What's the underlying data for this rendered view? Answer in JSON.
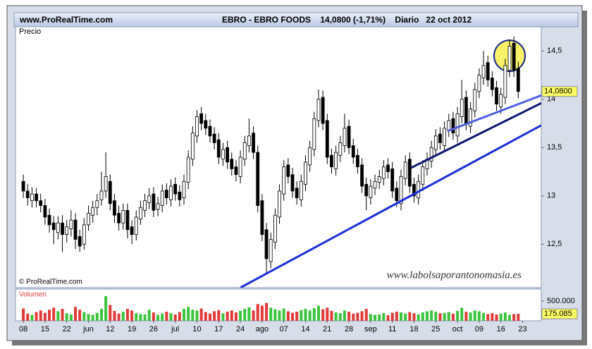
{
  "header": {
    "site": "www.ProRealTime.com",
    "title": "EBRO - EBRO FOODS    14,0800 (-1,71%)    Diario   22 oct 2012"
  },
  "chart_data": [
    {
      "type": "candlestick",
      "label": "Precio",
      "copyright": "© ProRealTime.com",
      "watermark": "www.labolsaporantonomasia.es",
      "up_color": "#ffffff",
      "down_color": "#000000",
      "xlim": [
        -1.8,
        119.3
      ],
      "ylim": [
        12.05,
        14.75
      ],
      "xticks": [
        {
          "value": 0,
          "label": "08"
        },
        {
          "value": 5,
          "label": "15"
        },
        {
          "value": 10,
          "label": "22"
        },
        {
          "value": 15,
          "label": "jun"
        },
        {
          "value": 20,
          "label": "12"
        },
        {
          "value": 25,
          "label": "19"
        },
        {
          "value": 30,
          "label": "26"
        },
        {
          "value": 35,
          "label": "jul"
        },
        {
          "value": 40,
          "label": "10"
        },
        {
          "value": 45,
          "label": "17"
        },
        {
          "value": 50,
          "label": "24"
        },
        {
          "value": 55,
          "label": "ago"
        },
        {
          "value": 60,
          "label": "07"
        },
        {
          "value": 65,
          "label": "14"
        },
        {
          "value": 70,
          "label": "21"
        },
        {
          "value": 75,
          "label": "28"
        },
        {
          "value": 80,
          "label": "sep"
        },
        {
          "value": 85,
          "label": "11"
        },
        {
          "value": 90,
          "label": "18"
        },
        {
          "value": 95,
          "label": "25"
        },
        {
          "value": 100,
          "label": "oct"
        },
        {
          "value": 105,
          "label": "09"
        },
        {
          "value": 110,
          "label": "16"
        },
        {
          "value": 115,
          "label": "23"
        }
      ],
      "yticks": [
        {
          "value": 14.5,
          "label": "14,5"
        },
        {
          "value": 14,
          "label": "14"
        },
        {
          "value": 13.5,
          "label": "13,5"
        },
        {
          "value": 13,
          "label": "13"
        },
        {
          "value": 12.5,
          "label": "12,5"
        }
      ],
      "last": {
        "value": 14.08,
        "label": "14,0800"
      },
      "open": [
        13.15,
        13.05,
        12.95,
        13.02,
        12.95,
        12.9,
        12.8,
        12.72,
        12.62,
        12.72,
        12.6,
        12.66,
        12.75,
        12.58,
        12.5,
        12.7,
        12.8,
        12.88,
        12.96,
        13.05,
        13.15,
        12.95,
        12.82,
        12.72,
        12.85,
        12.68,
        12.6,
        12.76,
        12.85,
        12.93,
        13.02,
        12.86,
        12.9,
        13.06,
        12.96,
        13.12,
        13.04,
        12.98,
        13.14,
        13.38,
        13.62,
        13.85,
        13.78,
        13.72,
        13.64,
        13.58,
        13.38,
        13.5,
        13.38,
        13.3,
        13.2,
        13.38,
        13.52,
        13.65,
        13.45,
        12.95,
        12.65,
        12.32,
        12.52,
        12.78,
        13.02,
        13.32,
        13.22,
        13.08,
        12.96,
        13.12,
        13.32,
        13.48,
        13.78,
        14.02,
        13.78,
        13.42,
        13.28,
        13.42,
        13.52,
        13.72,
        13.52,
        13.42,
        13.32,
        13.12,
        12.98,
        13.08,
        13.14,
        13.18,
        13.32,
        13.28,
        13.08,
        12.92,
        13.18,
        13.38,
        13.12,
        12.98,
        13.12,
        13.28,
        13.36,
        13.48,
        13.64,
        13.52,
        13.68,
        13.8,
        13.62,
        13.82,
        14.02,
        13.72,
        13.88,
        14.08,
        14.22,
        14.38,
        14.22,
        14.12,
        13.92,
        14.02,
        14.3,
        14.58,
        14.32
      ],
      "high": [
        13.22,
        13.12,
        13.09,
        13.08,
        13.02,
        12.97,
        12.87,
        12.79,
        12.79,
        12.8,
        12.75,
        12.85,
        12.82,
        12.65,
        12.77,
        12.9,
        12.95,
        13.02,
        13.25,
        13.45,
        13.22,
        13.02,
        12.9,
        12.92,
        12.92,
        12.75,
        12.85,
        12.95,
        13.02,
        13.08,
        13.09,
        12.99,
        13.12,
        13.13,
        13.17,
        13.19,
        13.11,
        13.22,
        13.47,
        13.72,
        13.89,
        13.92,
        13.85,
        13.79,
        13.71,
        13.65,
        13.55,
        13.57,
        13.45,
        13.37,
        13.47,
        13.62,
        13.8,
        13.72,
        13.52,
        13.02,
        12.72,
        12.62,
        12.87,
        13.12,
        13.37,
        13.39,
        13.29,
        13.15,
        13.22,
        13.42,
        13.57,
        13.87,
        14.1,
        14.09,
        13.85,
        13.49,
        13.52,
        13.62,
        13.85,
        13.79,
        13.59,
        13.49,
        13.39,
        13.19,
        13.17,
        13.22,
        13.27,
        13.37,
        13.39,
        13.35,
        13.15,
        13.27,
        13.42,
        13.45,
        13.19,
        13.22,
        13.37,
        13.45,
        13.57,
        13.69,
        13.71,
        13.77,
        13.85,
        13.87,
        13.92,
        14.2,
        14.09,
        13.97,
        14.17,
        14.32,
        14.5,
        14.45,
        14.29,
        14.19,
        14.12,
        14.42,
        14.62,
        14.65,
        14.39
      ],
      "low": [
        12.98,
        12.9,
        12.88,
        12.88,
        12.83,
        12.7,
        12.62,
        12.5,
        12.55,
        12.42,
        12.52,
        12.58,
        12.45,
        12.42,
        12.44,
        12.64,
        12.72,
        12.8,
        12.9,
        12.98,
        12.85,
        12.72,
        12.64,
        12.65,
        12.56,
        12.5,
        12.54,
        12.7,
        12.78,
        12.86,
        12.78,
        12.79,
        12.83,
        12.91,
        12.89,
        12.95,
        12.89,
        12.91,
        13.07,
        13.31,
        13.55,
        13.68,
        13.63,
        13.55,
        13.48,
        13.33,
        13.31,
        13.28,
        13.21,
        13.15,
        13.13,
        13.31,
        13.45,
        13.38,
        12.83,
        12.53,
        12.2,
        12.25,
        12.45,
        12.71,
        12.95,
        13.13,
        12.98,
        12.91,
        12.89,
        13.05,
        13.25,
        13.41,
        13.71,
        13.68,
        13.33,
        13.23,
        13.21,
        13.35,
        13.45,
        13.43,
        13.33,
        13.23,
        13.03,
        12.85,
        12.91,
        13.01,
        13.07,
        13.11,
        13.18,
        12.98,
        12.88,
        12.85,
        13.11,
        13.03,
        12.93,
        12.91,
        13.05,
        13.21,
        13.29,
        13.41,
        13.48,
        13.45,
        13.61,
        13.58,
        13.55,
        13.75,
        13.68,
        13.65,
        13.81,
        14.01,
        14.15,
        14.13,
        14.03,
        13.88,
        13.85,
        13.95,
        14.23,
        14.23,
        14.01
      ],
      "close": [
        13.05,
        12.98,
        13.02,
        12.95,
        12.9,
        12.78,
        12.7,
        12.65,
        12.72,
        12.6,
        12.68,
        12.75,
        12.55,
        12.48,
        12.7,
        12.82,
        12.88,
        12.95,
        13.05,
        13.2,
        12.92,
        12.8,
        12.72,
        12.85,
        12.65,
        12.6,
        12.78,
        12.88,
        12.95,
        13.0,
        12.85,
        12.92,
        13.05,
        12.98,
        13.1,
        13.02,
        12.96,
        13.15,
        13.4,
        13.65,
        13.82,
        13.75,
        13.7,
        13.62,
        13.55,
        13.4,
        13.48,
        13.35,
        13.28,
        13.22,
        13.4,
        13.55,
        13.62,
        13.45,
        12.9,
        12.6,
        12.35,
        12.55,
        12.8,
        13.05,
        13.3,
        13.2,
        13.05,
        12.98,
        13.15,
        13.35,
        13.5,
        13.8,
        14.0,
        13.75,
        13.4,
        13.3,
        13.45,
        13.55,
        13.7,
        13.5,
        13.4,
        13.3,
        13.1,
        13.0,
        13.1,
        13.15,
        13.2,
        13.3,
        13.25,
        13.05,
        12.95,
        13.2,
        13.35,
        13.1,
        13.0,
        13.15,
        13.3,
        13.38,
        13.5,
        13.62,
        13.55,
        13.7,
        13.78,
        13.65,
        13.85,
        14.0,
        13.75,
        13.9,
        14.1,
        14.25,
        14.35,
        14.2,
        14.1,
        13.95,
        14.05,
        14.35,
        14.55,
        14.3,
        14.08
      ],
      "trendlines": [
        {
          "color": "#1b2fd6",
          "x": [
            50,
            119.3
          ],
          "y": [
            12.05,
            13.73
          ]
        },
        {
          "color": "#0d1470",
          "x": [
            89.3,
            119.3
          ],
          "y": [
            13.29,
            13.96
          ]
        },
        {
          "color": "#4d5fe0",
          "x": [
            97.7,
            119.3
          ],
          "y": [
            13.67,
            14.04
          ]
        }
      ],
      "highlight": {
        "x": 112,
        "y": 14.45,
        "color": "#f7f26a"
      }
    },
    {
      "type": "volume",
      "label": "Volumen",
      "up_color": "#3cc43c",
      "down_color": "#e03a3a",
      "ylim": [
        0,
        800000
      ],
      "yticks": [
        {
          "value": 500000,
          "label": "500.000"
        }
      ],
      "last": {
        "value": 175085,
        "label": "175.085"
      },
      "values": [
        310000,
        180000,
        150000,
        220000,
        260000,
        200000,
        280000,
        330000,
        240000,
        300000,
        190000,
        160000,
        350000,
        280000,
        220000,
        170000,
        150000,
        200000,
        300000,
        620000,
        400000,
        250000,
        180000,
        230000,
        300000,
        260000,
        190000,
        170000,
        160000,
        280000,
        210000,
        150000,
        180000,
        230000,
        190000,
        160000,
        220000,
        300000,
        350000,
        280000,
        260000,
        310000,
        220000,
        180000,
        240000,
        270000,
        190000,
        230000,
        260000,
        210000,
        250000,
        300000,
        340000,
        260000,
        420000,
        380000,
        450000,
        330000,
        290000,
        260000,
        310000,
        240000,
        200000,
        230000,
        270000,
        300000,
        260000,
        320000,
        380000,
        290000,
        330000,
        250000,
        210000,
        190000,
        260000,
        230000,
        180000,
        200000,
        240000,
        300000,
        170000,
        150000,
        160000,
        190000,
        140000,
        200000,
        230000,
        210000,
        180000,
        220000,
        190000,
        160000,
        210000,
        240000,
        260000,
        230000,
        190000,
        200000,
        220000,
        180000,
        250000,
        330000,
        230000,
        210000,
        260000,
        240000,
        200000,
        170000,
        190000,
        160000,
        180000,
        210000,
        150000,
        170000,
        175085
      ]
    }
  ]
}
